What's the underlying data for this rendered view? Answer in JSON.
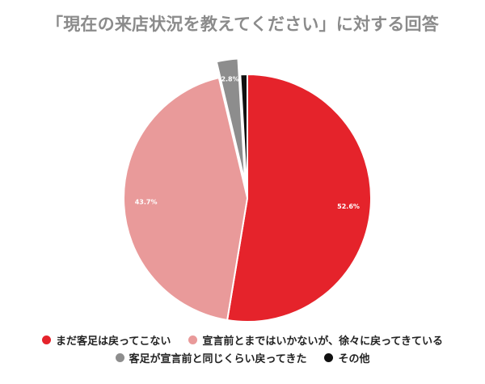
{
  "chart_data": {
    "type": "pie",
    "title": "「現在の来店状況を教えてください」に対する回答",
    "slices": [
      {
        "label": "まだ客足は戻ってこない",
        "value": 52.6,
        "value_label": "52.6%",
        "color": "#e5232b",
        "exploded": false
      },
      {
        "label": "宣言前とまではいかないが、徐々に戻ってきている",
        "value": 43.7,
        "value_label": "43.7%",
        "color": "#e99a9a",
        "exploded": false
      },
      {
        "label": "客足が宣言前と同じくらい戻ってきた",
        "value": 2.8,
        "value_label": "2.8%",
        "color": "#8d8d8d",
        "exploded": true
      },
      {
        "label": "その他",
        "value": 0.9,
        "value_label": "",
        "color": "#111111",
        "exploded": false
      }
    ],
    "start_angle": "12 o'clock",
    "direction": "clockwise",
    "legend_position": "bottom"
  }
}
